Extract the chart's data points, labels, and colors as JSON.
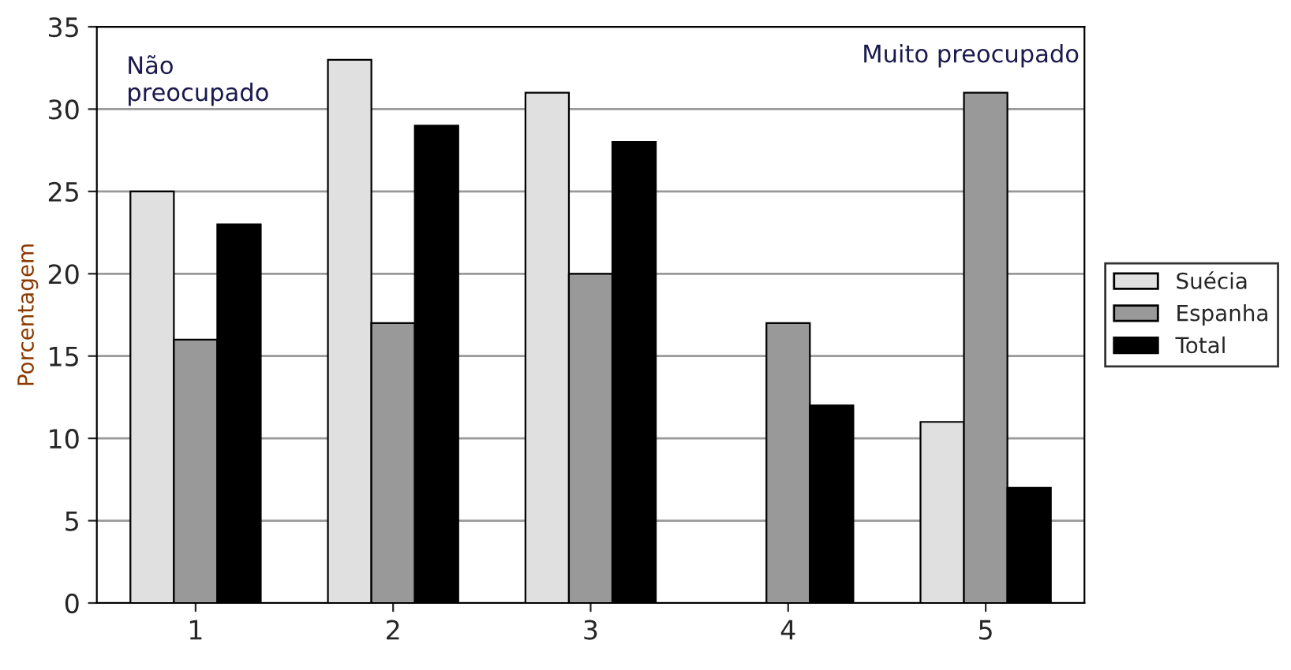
{
  "chart_data": {
    "type": "bar",
    "ylabel": "Porcentagem",
    "categories": [
      "1",
      "2",
      "3",
      "4",
      "5"
    ],
    "series": [
      {
        "name": "Suécia",
        "color": "#e0e0e0",
        "values": [
          25,
          33,
          31,
          null,
          11
        ]
      },
      {
        "name": "Espanha",
        "color": "#999999",
        "values": [
          16,
          17,
          20,
          17,
          31
        ]
      },
      {
        "name": "Total",
        "color": "#000000",
        "values": [
          23,
          29,
          28,
          12,
          7
        ]
      }
    ],
    "ylim": [
      0,
      35
    ],
    "yticks": [
      0,
      5,
      10,
      15,
      20,
      25,
      30,
      35
    ],
    "grid": "y",
    "legend": "right",
    "annotations": [
      "Não\npreocupado",
      "Muito preocupado"
    ]
  }
}
